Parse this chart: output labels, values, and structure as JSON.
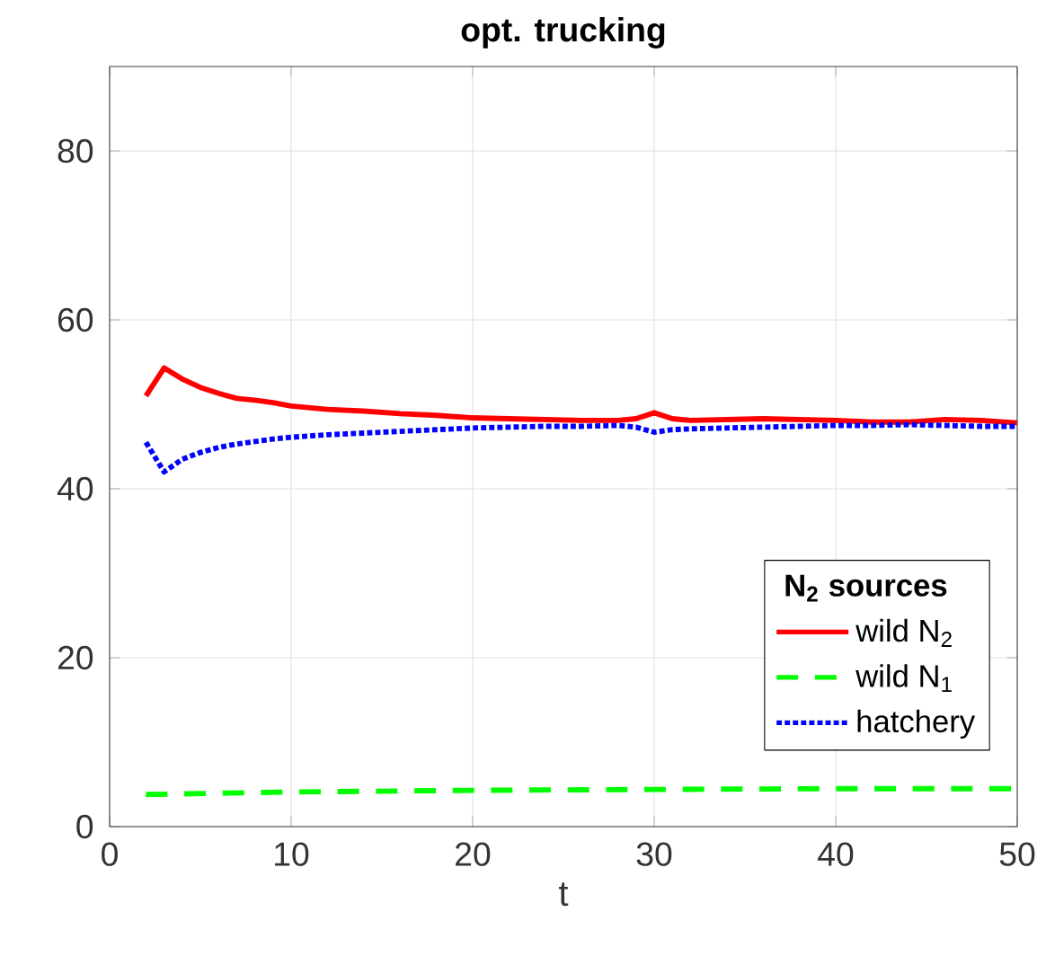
{
  "chart_data": {
    "type": "line",
    "title": "opt. trucking",
    "xlabel": "t",
    "legend_title": "N$_{2}$ sources",
    "xlim": [
      0,
      50
    ],
    "ylim": [
      0,
      90
    ],
    "xticks": [
      0,
      10,
      20,
      30,
      40,
      50
    ],
    "yticks": [
      0,
      20,
      40,
      60,
      80
    ],
    "grid": true,
    "legend": "bottom right",
    "series": [
      {
        "name": "wild N$_{2}$",
        "color": "#ff0000",
        "line_style": "solid",
        "x": [
          2,
          3,
          4,
          5,
          6,
          7,
          8,
          9,
          10,
          12,
          14,
          16,
          18,
          20,
          22,
          24,
          26,
          28,
          29,
          30,
          31,
          32,
          34,
          36,
          38,
          40,
          42,
          44,
          46,
          48,
          50
        ],
        "values": [
          51,
          54.3,
          53,
          52,
          51.3,
          50.7,
          50.5,
          50.2,
          49.8,
          49.4,
          49.2,
          48.9,
          48.7,
          48.4,
          48.3,
          48.2,
          48.1,
          48.1,
          48.3,
          49,
          48.3,
          48.1,
          48.2,
          48.3,
          48.2,
          48.1,
          47.9,
          47.9,
          48.2,
          48.1,
          47.8
        ]
      },
      {
        "name": "wild N$_{1}$",
        "color": "#00ff00",
        "line_style": "dashed",
        "x": [
          2,
          10,
          20,
          30,
          40,
          50
        ],
        "values": [
          3.8,
          4.1,
          4.3,
          4.4,
          4.5,
          4.5
        ]
      },
      {
        "name": "hatchery",
        "color": "#0000ff",
        "line_style": "dotted",
        "x": [
          2,
          3,
          4,
          5,
          6,
          7,
          8,
          9,
          10,
          12,
          14,
          16,
          18,
          20,
          22,
          24,
          26,
          28,
          29,
          30,
          31,
          32,
          34,
          36,
          38,
          40,
          42,
          44,
          46,
          48,
          50
        ],
        "values": [
          45.5,
          42,
          43.5,
          44.3,
          44.9,
          45.3,
          45.6,
          45.9,
          46.1,
          46.4,
          46.6,
          46.8,
          47,
          47.2,
          47.3,
          47.4,
          47.4,
          47.5,
          47.3,
          46.7,
          47,
          47.1,
          47.2,
          47.3,
          47.4,
          47.5,
          47.5,
          47.6,
          47.5,
          47.4,
          47.4
        ]
      }
    ]
  }
}
